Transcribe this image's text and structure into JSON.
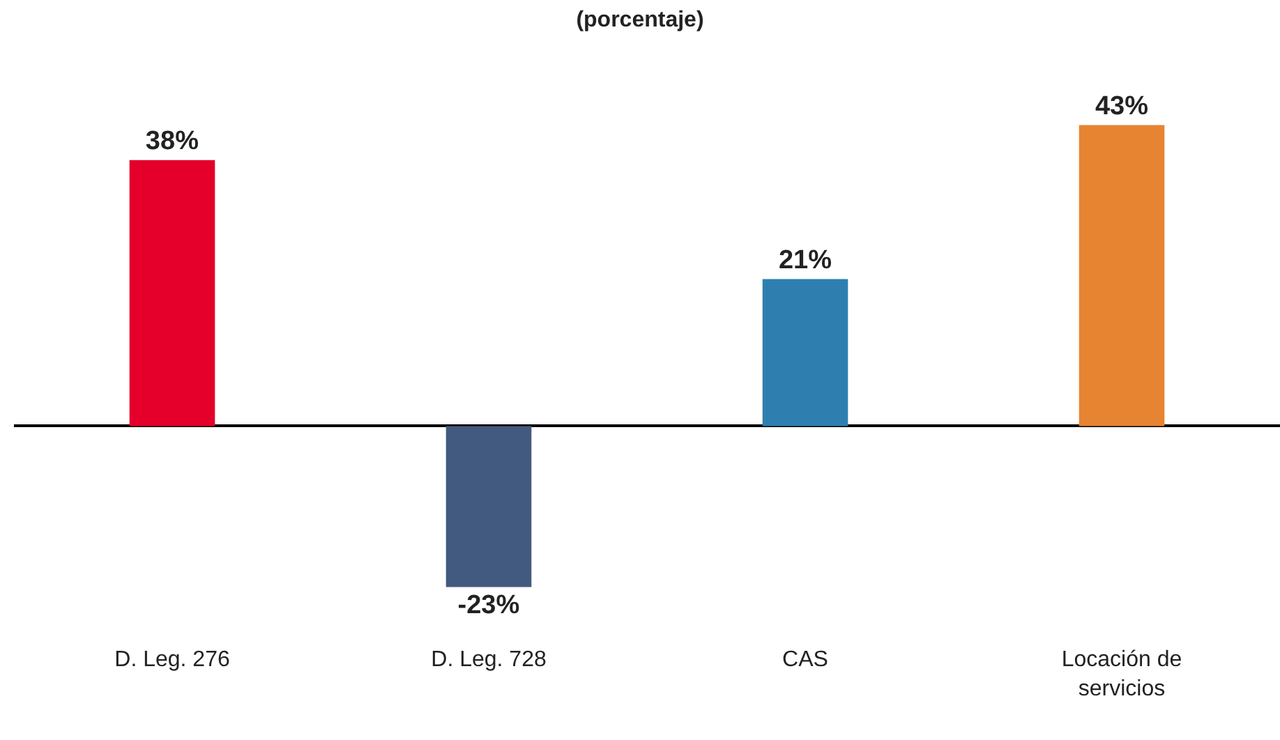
{
  "chart_data": {
    "type": "bar",
    "title": "(porcentaje)",
    "categories": [
      "D. Leg. 276",
      "D. Leg. 728",
      "CAS",
      "Locación de servicios"
    ],
    "values": [
      38,
      -23,
      21,
      43
    ],
    "colors": [
      "#e4002b",
      "#435a80",
      "#2e7fb0",
      "#e68432"
    ],
    "value_labels": [
      "38%",
      "-23%",
      "21%",
      "43%"
    ]
  }
}
